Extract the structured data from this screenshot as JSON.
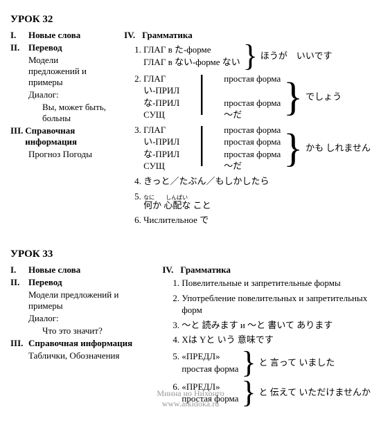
{
  "lesson32": {
    "title": "УРОК 32",
    "sections": {
      "i": {
        "num": "I.",
        "title": "Новые слова"
      },
      "ii": {
        "num": "II.",
        "title": "Перевод",
        "sub1": "Модели предложений и примеры",
        "sub2": "Диалог:",
        "sub3": "Вы, может быть, больны"
      },
      "iii": {
        "num": "III.",
        "title": "Справочная информация",
        "sub1": "Прогноз Погоды"
      },
      "iv": {
        "num": "IV.",
        "title": "Грамматика",
        "item1": {
          "rows": [
            "ГЛАГ в た-форме",
            "ГЛАГ в ない-форме ない"
          ],
          "tail": "ほうが　いいです"
        },
        "item2": {
          "col1": [
            "ГЛАГ",
            "い-ПРИЛ",
            "な-ПРИЛ",
            "СУЩ"
          ],
          "col2": [
            "простая форма",
            "",
            "простая форма",
            "〜だ"
          ],
          "tail": "でしょう"
        },
        "item3": {
          "col1": [
            "ГЛАГ",
            "い-ПРИЛ",
            "な-ПРИЛ",
            "СУЩ"
          ],
          "col2": [
            "простая форма",
            "простая форма",
            "простая форма",
            "〜だ"
          ],
          "tail": "かも しれません"
        },
        "item4": "きっと／たぶん／もしかしたら",
        "item5": "何か 心配な こと",
        "item5_ruby": "なに　　しんぱい",
        "item6": "Числительное で"
      }
    }
  },
  "lesson33": {
    "title": "УРОК 33",
    "sections": {
      "i": {
        "num": "I.",
        "title": "Новые слова"
      },
      "ii": {
        "num": "II.",
        "title": "Перевод",
        "sub1": "Модели предложений и примеры",
        "sub2": "Диалог:",
        "sub3": "Что это значит?"
      },
      "iii": {
        "num": "III.",
        "title": "Справочная информация",
        "sub1": "Таблички, Обозначения"
      },
      "iv": {
        "num": "IV.",
        "title": "Грамматика",
        "item1": "Повелительные и запретительные формы",
        "item2": "Употребление повелительных и запретительных форм",
        "item3": "〜と 読みます и 〜と 書いて あります",
        "item4": "Xは Yと いう 意味です",
        "item5": {
          "rows": [
            "«ПРЕДЛ»",
            "простая форма"
          ],
          "tail": "と 言って いました"
        },
        "item6": {
          "rows": [
            "«ПРЕДЛ»",
            "простая форма"
          ],
          "tail": "と 伝えて いただけませんか"
        }
      }
    }
  },
  "watermark": {
    "line1": "Минна но Нихонго",
    "line2": "www.aikidoka.ru"
  }
}
